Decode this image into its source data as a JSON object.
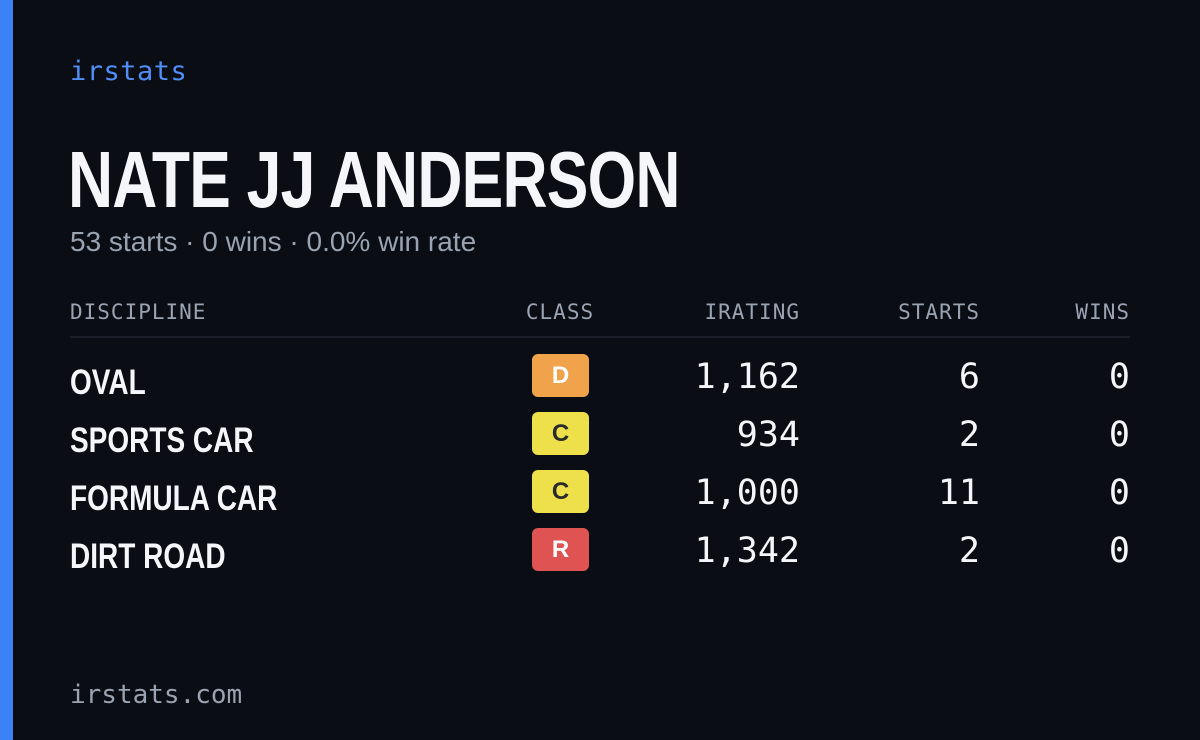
{
  "brand": "irstats",
  "driver_name": "NATE JJ ANDERSON",
  "summary": "53 starts · 0 wins · 0.0% win rate",
  "colors": {
    "accent": "#3b82f6",
    "class_D": "#f0a34a",
    "class_C": "#ede04a",
    "class_R": "#df5452"
  },
  "table": {
    "headers": {
      "discipline": "DISCIPLINE",
      "class": "CLASS",
      "irating": "IRATING",
      "starts": "STARTS",
      "wins": "WINS"
    },
    "rows": [
      {
        "discipline": "OVAL",
        "class": "D",
        "badge_color": "#f0a34a",
        "badge_text_color": "#ffffff",
        "irating": "1,162",
        "starts": "6",
        "wins": "0"
      },
      {
        "discipline": "SPORTS CAR",
        "class": "C",
        "badge_color": "#ede04a",
        "badge_text_color": "#2a2a2a",
        "irating": "934",
        "starts": "2",
        "wins": "0"
      },
      {
        "discipline": "FORMULA CAR",
        "class": "C",
        "badge_color": "#ede04a",
        "badge_text_color": "#2a2a2a",
        "irating": "1,000",
        "starts": "11",
        "wins": "0"
      },
      {
        "discipline": "DIRT ROAD",
        "class": "R",
        "badge_color": "#df5452",
        "badge_text_color": "#ffffff",
        "irating": "1,342",
        "starts": "2",
        "wins": "0"
      }
    ]
  },
  "footer": {
    "url": "irstats.com"
  }
}
